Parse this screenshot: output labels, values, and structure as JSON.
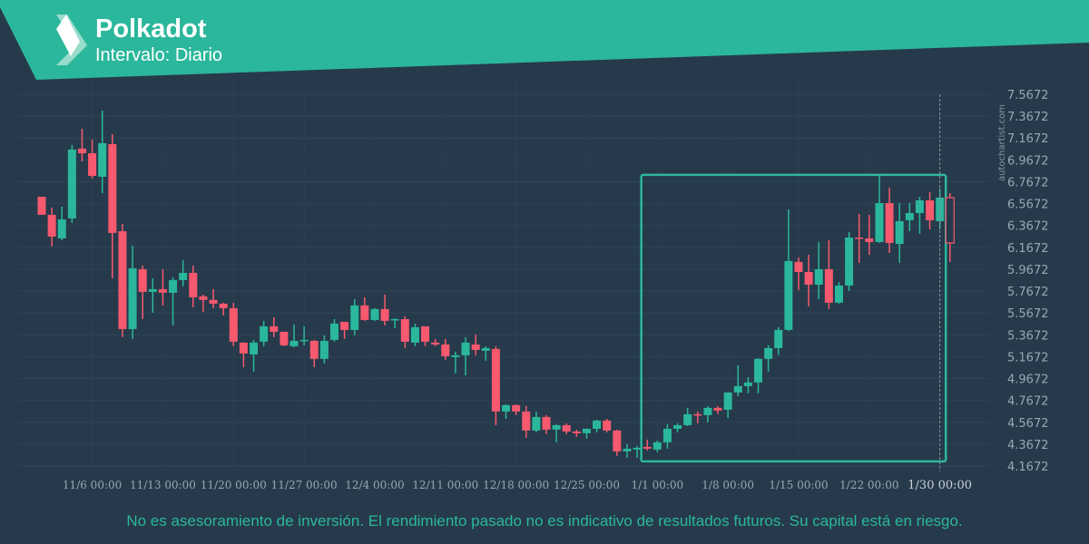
{
  "header": {
    "title": "Polkadot",
    "subtitle": "Intervalo: Diario"
  },
  "footer": {
    "disclaimer": "No es asesoramiento de inversión. El rendimiento pasado no es indicativo de resultados futuros. Su capital está en riesgo."
  },
  "watermark": "autochartist.com",
  "colors": {
    "up": "#2bb79b",
    "down": "#f7596e",
    "background": "#263a4b",
    "banner": "#2bb79b",
    "pattern_box": "#2bb79b"
  },
  "icons": {
    "logo": "autochartist-logo-icon"
  },
  "chart_data": {
    "type": "candlestick",
    "title": "Polkadot",
    "ylim": [
      4.1672,
      7.5672
    ],
    "y_ticks": [
      "7.5672",
      "7.3672",
      "7.1672",
      "6.9672",
      "6.7672",
      "6.5672",
      "6.3672",
      "6.1672",
      "5.9672",
      "5.7672",
      "5.5672",
      "5.3672",
      "5.1672",
      "4.9672",
      "4.7672",
      "4.5672",
      "4.3672",
      "4.1672"
    ],
    "y_axis_position": "right",
    "grid": true,
    "x_ticks": [
      {
        "label": "11/6 00:00",
        "index": 5
      },
      {
        "label": "11/13 00:00",
        "index": 12
      },
      {
        "label": "11/20 00:00",
        "index": 19
      },
      {
        "label": "11/27 00:00",
        "index": 26
      },
      {
        "label": "12/4 00:00",
        "index": 33
      },
      {
        "label": "12/11 00:00",
        "index": 40
      },
      {
        "label": "12/18 00:00",
        "index": 47
      },
      {
        "label": "12/25 00:00",
        "index": 54
      },
      {
        "label": "1/1 00:00",
        "index": 61
      },
      {
        "label": "1/8 00:00",
        "index": 68
      },
      {
        "label": "1/15 00:00",
        "index": 75
      },
      {
        "label": "1/22 00:00",
        "index": 82
      }
    ],
    "marker": {
      "label": "1/30 00:00",
      "index": 89
    },
    "pattern_box": {
      "from_index": 59.5,
      "to_index": 89.5,
      "high": 6.83,
      "low": 4.21
    },
    "candles": [
      [
        6.63,
        6.63,
        6.465,
        6.465
      ],
      [
        6.465,
        6.531,
        6.175,
        6.266
      ],
      [
        6.249,
        6.539,
        6.233,
        6.423
      ],
      [
        6.432,
        7.103,
        6.39,
        7.062
      ],
      [
        7.07,
        7.252,
        6.954,
        7.028
      ],
      [
        7.028,
        7.153,
        6.796,
        6.821
      ],
      [
        6.813,
        7.418,
        6.664,
        7.12
      ],
      [
        7.111,
        7.202,
        5.884,
        6.299
      ],
      [
        6.315,
        6.382,
        5.346,
        5.42
      ],
      [
        5.42,
        6.183,
        5.329,
        5.976
      ],
      [
        5.967,
        6.0,
        5.511,
        5.76
      ],
      [
        5.76,
        5.884,
        5.569,
        5.785
      ],
      [
        5.785,
        5.967,
        5.636,
        5.752
      ],
      [
        5.752,
        5.893,
        5.453,
        5.868
      ],
      [
        5.868,
        6.05,
        5.81,
        5.934
      ],
      [
        5.934,
        6.0,
        5.619,
        5.71
      ],
      [
        5.719,
        5.735,
        5.578,
        5.686
      ],
      [
        5.686,
        5.785,
        5.611,
        5.652
      ],
      [
        5.652,
        5.661,
        5.545,
        5.611
      ],
      [
        5.611,
        5.661,
        5.263,
        5.304
      ],
      [
        5.296,
        5.296,
        5.072,
        5.196
      ],
      [
        5.188,
        5.321,
        5.031,
        5.296
      ],
      [
        5.304,
        5.495,
        5.263,
        5.445
      ],
      [
        5.445,
        5.528,
        5.346,
        5.395
      ],
      [
        5.395,
        5.395,
        5.263,
        5.271
      ],
      [
        5.263,
        5.462,
        5.254,
        5.312
      ],
      [
        5.312,
        5.445,
        5.271,
        5.321
      ],
      [
        5.312,
        5.321,
        5.072,
        5.147
      ],
      [
        5.147,
        5.362,
        5.105,
        5.312
      ],
      [
        5.321,
        5.511,
        5.304,
        5.47
      ],
      [
        5.486,
        5.486,
        5.329,
        5.412
      ],
      [
        5.412,
        5.694,
        5.362,
        5.636
      ],
      [
        5.636,
        5.71,
        5.495,
        5.503
      ],
      [
        5.503,
        5.611,
        5.495,
        5.603
      ],
      [
        5.603,
        5.735,
        5.453,
        5.495
      ],
      [
        5.503,
        5.52,
        5.428,
        5.511
      ],
      [
        5.511,
        5.536,
        5.246,
        5.304
      ],
      [
        5.296,
        5.47,
        5.263,
        5.437
      ],
      [
        5.445,
        5.445,
        5.263,
        5.304
      ],
      [
        5.296,
        5.329,
        5.263,
        5.279
      ],
      [
        5.279,
        5.329,
        5.138,
        5.172
      ],
      [
        5.163,
        5.213,
        5.014,
        5.18
      ],
      [
        5.18,
        5.346,
        4.997,
        5.296
      ],
      [
        5.279,
        5.37,
        5.18,
        5.229
      ],
      [
        5.221,
        5.263,
        5.13,
        5.246
      ],
      [
        5.238,
        5.263,
        4.541,
        4.666
      ],
      [
        4.666,
        4.732,
        4.599,
        4.724
      ],
      [
        4.724,
        4.732,
        4.633,
        4.666
      ],
      [
        4.666,
        4.716,
        4.425,
        4.492
      ],
      [
        4.492,
        4.666,
        4.475,
        4.616
      ],
      [
        4.616,
        4.633,
        4.459,
        4.5
      ],
      [
        4.5,
        4.55,
        4.384,
        4.541
      ],
      [
        4.541,
        4.558,
        4.459,
        4.483
      ],
      [
        4.483,
        4.5,
        4.434,
        4.467
      ],
      [
        4.467,
        4.508,
        4.417,
        4.508
      ],
      [
        4.508,
        4.591,
        4.475,
        4.583
      ],
      [
        4.583,
        4.599,
        4.475,
        4.492
      ],
      [
        4.492,
        4.5,
        4.26,
        4.301
      ],
      [
        4.301,
        4.367,
        4.243,
        4.326
      ],
      [
        4.318,
        4.351,
        4.243,
        4.334
      ],
      [
        4.342,
        4.409,
        4.309,
        4.326
      ],
      [
        4.318,
        4.4,
        4.293,
        4.384
      ],
      [
        4.384,
        4.55,
        4.326,
        4.508
      ],
      [
        4.508,
        4.558,
        4.475,
        4.541
      ],
      [
        4.541,
        4.699,
        4.533,
        4.641
      ],
      [
        4.641,
        4.666,
        4.558,
        4.633
      ],
      [
        4.633,
        4.716,
        4.566,
        4.699
      ],
      [
        4.699,
        4.716,
        4.641,
        4.674
      ],
      [
        4.682,
        4.84,
        4.608,
        4.84
      ],
      [
        4.84,
        5.089,
        4.807,
        4.898
      ],
      [
        4.898,
        4.981,
        4.832,
        4.931
      ],
      [
        4.931,
        5.155,
        4.832,
        5.147
      ],
      [
        5.147,
        5.271,
        5.031,
        5.246
      ],
      [
        5.246,
        5.437,
        5.18,
        5.412
      ],
      [
        5.412,
        6.514,
        5.404,
        6.042
      ],
      [
        6.034,
        6.075,
        5.777,
        5.942
      ],
      [
        5.942,
        6.1,
        5.627,
        5.826
      ],
      [
        5.826,
        6.216,
        5.694,
        5.967
      ],
      [
        5.967,
        6.233,
        5.603,
        5.661
      ],
      [
        5.661,
        5.851,
        5.652,
        5.818
      ],
      [
        5.818,
        6.307,
        5.768,
        6.257
      ],
      [
        6.257,
        6.473,
        6.025,
        6.249
      ],
      [
        6.249,
        6.465,
        6.1,
        6.216
      ],
      [
        6.216,
        6.829,
        6.208,
        6.572
      ],
      [
        6.572,
        6.713,
        6.117,
        6.208
      ],
      [
        6.199,
        6.572,
        6.025,
        6.407
      ],
      [
        6.415,
        6.572,
        6.315,
        6.481
      ],
      [
        6.481,
        6.63,
        6.291,
        6.597
      ],
      [
        6.597,
        6.672,
        6.332,
        6.415
      ],
      [
        6.407,
        6.705,
        6.332,
        6.622
      ],
      [
        6.622,
        6.664,
        6.034,
        6.208
      ]
    ],
    "candle_fields": [
      "open",
      "high",
      "low",
      "close"
    ],
    "last_candle_style": "hollow"
  }
}
